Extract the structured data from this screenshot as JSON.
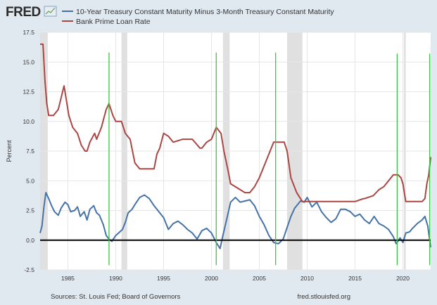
{
  "header": {
    "logo_text": "FRED",
    "logo_icon": "fred-chart-icon"
  },
  "footer": {
    "sources": "Sources: St. Louis Fed; Board of Governors",
    "url": "fred.stlouisfed.org"
  },
  "colors": {
    "background": "#e1e9f0",
    "plot_background": "#ffffff",
    "recession_shading": "#e0e0e0",
    "series_spread": "#4572a7",
    "series_prime": "#aa4643",
    "zero_line": "#000000",
    "annotation_lines": "#39c93e"
  },
  "chart_data": {
    "type": "line",
    "ylabel": "Percent",
    "ylim": [
      -2.5,
      17.5
    ],
    "xlim": [
      1982.1,
      2022.9
    ],
    "yticks": [
      "-2.5",
      "0.0",
      "2.5",
      "5.0",
      "7.5",
      "10.0",
      "12.5",
      "15.0",
      "17.5"
    ],
    "xticks": [
      "1985",
      "1990",
      "1995",
      "2000",
      "2005",
      "2010",
      "2015",
      "2020"
    ],
    "grid": true,
    "legend_position": "top",
    "reference_line": 0,
    "recessions": [
      [
        1982.0,
        1982.9
      ],
      [
        1990.6,
        1991.2
      ],
      [
        2001.2,
        2001.9
      ],
      [
        2007.9,
        2009.5
      ],
      [
        2020.1,
        2020.3
      ]
    ],
    "annotation_lines": [
      {
        "x": 1989.3,
        "y_top": 15.8,
        "y_bottom": -2.1
      },
      {
        "x": 2000.5,
        "y_top": 15.8,
        "y_bottom": -2.1
      },
      {
        "x": 2006.7,
        "y_top": 15.8,
        "y_bottom": -2.1
      },
      {
        "x": 2019.4,
        "y_top": 15.7,
        "y_bottom": -2.1
      },
      {
        "x": 2022.8,
        "y_top": 15.7,
        "y_bottom": -2.1
      }
    ],
    "series": [
      {
        "name": "10-Year Treasury Constant Maturity Minus 3-Month Treasury Constant Maturity",
        "x": [
          1982.1,
          1982.3,
          1982.5,
          1982.7,
          1983.0,
          1983.3,
          1983.6,
          1984.0,
          1984.3,
          1984.7,
          1985.0,
          1985.3,
          1985.7,
          1986.0,
          1986.3,
          1986.7,
          1987.0,
          1987.3,
          1987.7,
          1988.0,
          1988.3,
          1988.7,
          1989.0,
          1989.3,
          1989.6,
          1990.0,
          1990.3,
          1990.7,
          1991.0,
          1991.3,
          1991.7,
          1992.0,
          1992.5,
          1993.0,
          1993.5,
          1994.0,
          1994.3,
          1994.7,
          1995.0,
          1995.5,
          1996.0,
          1996.5,
          1997.0,
          1997.5,
          1998.0,
          1998.5,
          1999.0,
          1999.5,
          2000.0,
          2000.5,
          2000.9,
          2001.2,
          2001.6,
          2002.0,
          2002.5,
          2003.0,
          2003.5,
          2004.0,
          2004.5,
          2005.0,
          2005.5,
          2006.0,
          2006.5,
          2007.0,
          2007.5,
          2008.0,
          2008.3,
          2008.7,
          2009.0,
          2009.3,
          2009.7,
          2010.0,
          2010.5,
          2011.0,
          2011.5,
          2012.0,
          2012.5,
          2013.0,
          2013.5,
          2014.0,
          2014.5,
          2015.0,
          2015.5,
          2016.0,
          2016.5,
          2017.0,
          2017.5,
          2018.0,
          2018.5,
          2019.0,
          2019.3,
          2019.7,
          2020.0,
          2020.3,
          2020.7,
          2021.0,
          2021.5,
          2022.0,
          2022.3,
          2022.6,
          2022.9
        ],
        "values": [
          0.6,
          1.2,
          2.8,
          4.0,
          3.5,
          2.9,
          2.4,
          2.1,
          2.7,
          3.2,
          3.0,
          2.4,
          2.5,
          2.8,
          2.0,
          2.4,
          1.7,
          2.6,
          2.9,
          2.3,
          2.1,
          1.3,
          0.4,
          0.1,
          -0.1,
          0.4,
          0.6,
          0.9,
          1.5,
          2.3,
          2.6,
          3.0,
          3.6,
          3.8,
          3.5,
          2.9,
          2.6,
          2.2,
          1.9,
          0.9,
          1.4,
          1.6,
          1.3,
          0.9,
          0.6,
          0.1,
          0.8,
          1.0,
          0.6,
          -0.2,
          -0.7,
          0.4,
          1.8,
          3.2,
          3.6,
          3.2,
          3.3,
          3.4,
          2.9,
          2.0,
          1.3,
          0.4,
          -0.2,
          -0.3,
          0.1,
          1.3,
          2.0,
          2.7,
          3.0,
          3.3,
          3.2,
          3.6,
          2.8,
          3.2,
          2.4,
          1.9,
          1.5,
          1.8,
          2.6,
          2.6,
          2.4,
          2.0,
          2.2,
          1.7,
          1.4,
          2.0,
          1.4,
          1.2,
          0.9,
          0.3,
          -0.3,
          0.2,
          -0.2,
          0.6,
          0.7,
          1.0,
          1.4,
          1.7,
          2.0,
          1.2,
          -0.6
        ]
      },
      {
        "name": "Bank Prime Loan Rate",
        "x": [
          1982.1,
          1982.4,
          1982.6,
          1982.8,
          1983.0,
          1983.5,
          1984.0,
          1984.3,
          1984.6,
          1984.9,
          1985.1,
          1985.5,
          1986.0,
          1986.4,
          1986.8,
          1987.0,
          1987.3,
          1987.8,
          1988.0,
          1988.5,
          1989.0,
          1989.3,
          1989.7,
          1990.0,
          1990.6,
          1991.0,
          1991.5,
          1992.0,
          1992.5,
          1993.0,
          1994.0,
          1994.3,
          1994.6,
          1995.0,
          1995.5,
          1996.0,
          1997.0,
          1998.0,
          1998.8,
          1999.0,
          1999.5,
          2000.0,
          2000.5,
          2001.0,
          2001.3,
          2001.7,
          2002.0,
          2003.0,
          2003.5,
          2004.0,
          2004.5,
          2005.0,
          2005.5,
          2006.0,
          2006.5,
          2007.0,
          2007.6,
          2007.9,
          2008.3,
          2008.9,
          2009.5,
          2012.0,
          2015.0,
          2015.9,
          2016.0,
          2016.9,
          2017.5,
          2018.0,
          2018.5,
          2019.0,
          2019.5,
          2019.8,
          2020.0,
          2020.3,
          2021.0,
          2022.0,
          2022.3,
          2022.5,
          2022.7,
          2022.9
        ],
        "values": [
          16.5,
          16.5,
          13.5,
          11.5,
          10.5,
          10.5,
          11.0,
          12.0,
          13.0,
          11.5,
          10.5,
          9.5,
          9.0,
          8.0,
          7.5,
          7.5,
          8.25,
          9.0,
          8.5,
          9.5,
          11.0,
          11.5,
          10.5,
          10.0,
          10.0,
          9.0,
          8.5,
          6.5,
          6.0,
          6.0,
          6.0,
          7.25,
          7.75,
          9.0,
          8.75,
          8.25,
          8.5,
          8.5,
          7.75,
          7.75,
          8.25,
          8.5,
          9.5,
          9.0,
          7.5,
          6.0,
          4.75,
          4.25,
          4.0,
          4.0,
          4.5,
          5.25,
          6.25,
          7.25,
          8.25,
          8.25,
          8.25,
          7.5,
          5.25,
          4.0,
          3.25,
          3.25,
          3.25,
          3.5,
          3.5,
          3.75,
          4.25,
          4.5,
          5.0,
          5.5,
          5.5,
          5.25,
          4.75,
          3.25,
          3.25,
          3.25,
          3.5,
          4.75,
          5.5,
          7.0
        ]
      }
    ]
  }
}
